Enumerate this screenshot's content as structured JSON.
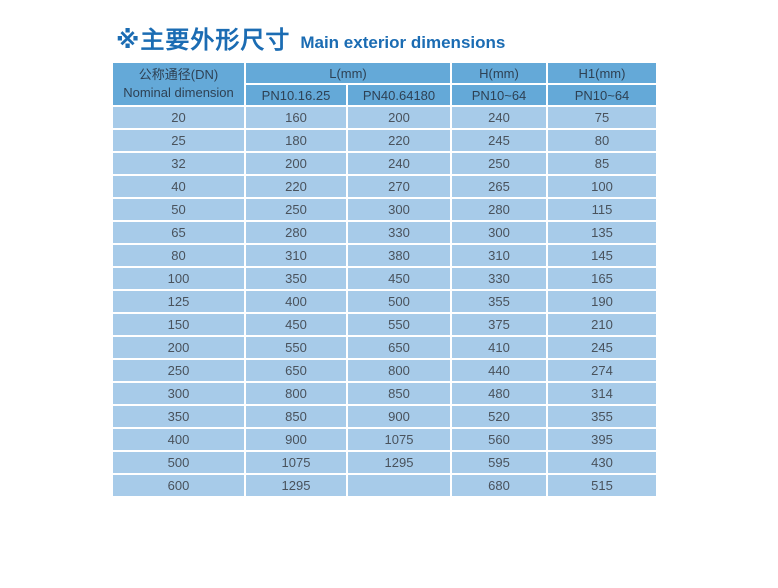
{
  "page": {
    "title_zh": "※主要外形尺寸",
    "title_en": "Main exterior dimensions"
  },
  "colors": {
    "title": "#1b6cb3",
    "header_bg": "#64a9d8",
    "row_bg": "#a7cbe9",
    "header_text": "#2e4154",
    "cell_text": "#49525c",
    "separator": "#ffffff"
  },
  "table": {
    "header": {
      "dn_zh": "公称通径(DN)",
      "dn_en": "Nominal dimension",
      "l": "L(mm)",
      "h": "H(mm)",
      "h1": "H1(mm)",
      "l_sub1": "PN10.16.25",
      "l_sub2": "PN40.64180",
      "h_sub": "PN10~64",
      "h1_sub": "PN10~64"
    },
    "rows": [
      [
        "20",
        "160",
        "200",
        "240",
        "75"
      ],
      [
        "25",
        "180",
        "220",
        "245",
        "80"
      ],
      [
        "32",
        "200",
        "240",
        "250",
        "85"
      ],
      [
        "40",
        "220",
        "270",
        "265",
        "100"
      ],
      [
        "50",
        "250",
        "300",
        "280",
        "115"
      ],
      [
        "65",
        "280",
        "330",
        "300",
        "135"
      ],
      [
        "80",
        "310",
        "380",
        "310",
        "145"
      ],
      [
        "100",
        "350",
        "450",
        "330",
        "165"
      ],
      [
        "125",
        "400",
        "500",
        "355",
        "190"
      ],
      [
        "150",
        "450",
        "550",
        "375",
        "210"
      ],
      [
        "200",
        "550",
        "650",
        "410",
        "245"
      ],
      [
        "250",
        "650",
        "800",
        "440",
        "274"
      ],
      [
        "300",
        "800",
        "850",
        "480",
        "314"
      ],
      [
        "350",
        "850",
        "900",
        "520",
        "355"
      ],
      [
        "400",
        "900",
        "1075",
        "560",
        "395"
      ],
      [
        "500",
        "1075",
        "1295",
        "595",
        "430"
      ],
      [
        "600",
        "1295",
        "",
        "680",
        "515"
      ]
    ]
  }
}
